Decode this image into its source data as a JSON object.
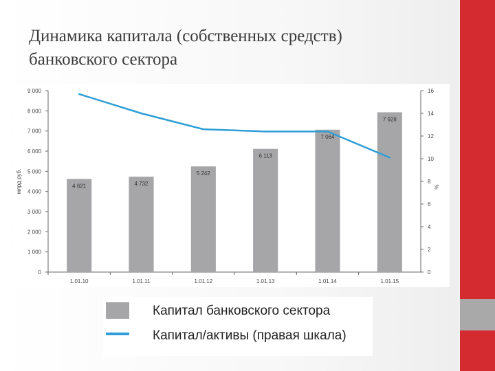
{
  "slide": {
    "title_line1": "Динамика капитала (собственных средств)",
    "title_line2": "банковского сектора",
    "accent_color": "#d32b2f"
  },
  "legend": {
    "items": [
      {
        "label": "Капитал банковского сектора",
        "color": "#a6a6a8",
        "kind": "bar"
      },
      {
        "label": "Капитал/активы (правая шкала)",
        "color": "#2f9ed6",
        "kind": "line"
      }
    ]
  },
  "chart_data": {
    "type": "bar",
    "categories": [
      "1.01.10",
      "1.01.11",
      "1.01.12",
      "1.01.13",
      "1.01.14",
      "1.01.15"
    ],
    "series": [
      {
        "name": "Капитал банковского сектора",
        "type": "bar",
        "axis": "left",
        "values": [
          4621,
          4732,
          5242,
          6113,
          7064,
          7928
        ],
        "labels": [
          "4 621",
          "4 732",
          "5 242",
          "6 113",
          "7 064",
          "7 928"
        ],
        "color": "#a6a6a8"
      },
      {
        "name": "Капитал/активы (правая шкала)",
        "type": "line",
        "axis": "right",
        "values": [
          15.7,
          14.0,
          12.6,
          12.4,
          12.4,
          10.1
        ],
        "color": "#2f9ed6"
      }
    ],
    "ylabel_left": "млрд руб.",
    "ylabel_right": "%",
    "ylim_left": [
      0,
      9000
    ],
    "ylim_right": [
      0,
      16
    ],
    "yticks_left": [
      "0",
      "1 000",
      "2 000",
      "3 000",
      "4 000",
      "5 000",
      "6 000",
      "7 000",
      "8 000",
      "9 000"
    ],
    "yticks_right": [
      "0",
      "2",
      "4",
      "6",
      "8",
      "10",
      "12",
      "14",
      "16"
    ],
    "grid": false
  }
}
